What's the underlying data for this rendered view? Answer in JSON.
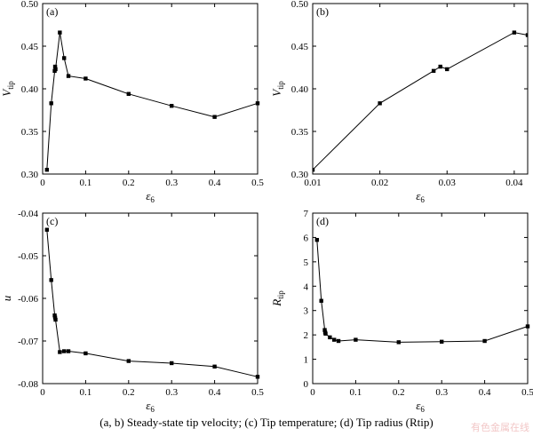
{
  "caption": "(a, b) Steady-state tip velocity; (c) Tip temperature; (d) Tip radius (Rtip)",
  "watermark": "有色金属在线",
  "colors": {
    "line": "#000000",
    "marker": "#000000",
    "axis": "#000000"
  },
  "chart_data": [
    {
      "type": "line",
      "panel": "(a)",
      "xlabel": "ε6",
      "ylabel": "Vtip",
      "xlim": [
        0,
        0.5
      ],
      "ylim": [
        0.3,
        0.5
      ],
      "xticks": [
        "0",
        "0.1",
        "0.2",
        "0.3",
        "0.4",
        "0.5"
      ],
      "yticks": [
        "0.30",
        "0.35",
        "0.40",
        "0.45",
        "0.50"
      ],
      "x": [
        0.01,
        0.02,
        0.028,
        0.029,
        0.03,
        0.04,
        0.05,
        0.06,
        0.1,
        0.2,
        0.3,
        0.4,
        0.5
      ],
      "y": [
        0.305,
        0.383,
        0.421,
        0.426,
        0.423,
        0.466,
        0.436,
        0.415,
        0.412,
        0.394,
        0.38,
        0.367,
        0.383
      ]
    },
    {
      "type": "line",
      "panel": "(b)",
      "xlabel": "ε6",
      "ylabel": "Vtip",
      "xlim": [
        0.01,
        0.042
      ],
      "ylim": [
        0.3,
        0.5
      ],
      "xticks": [
        "0.01",
        "0.02",
        "0.03",
        "0.04"
      ],
      "yticks": [
        "0.30",
        "0.35",
        "0.40",
        "0.45",
        "0.50"
      ],
      "x": [
        0.01,
        0.02,
        0.028,
        0.029,
        0.03,
        0.04,
        0.042
      ],
      "y": [
        0.305,
        0.383,
        0.421,
        0.426,
        0.423,
        0.466,
        0.463
      ]
    },
    {
      "type": "line",
      "panel": "(c)",
      "xlabel": "ε6",
      "ylabel": "u",
      "xlim": [
        0,
        0.5
      ],
      "ylim": [
        -0.08,
        -0.04
      ],
      "xticks": [
        "0",
        "0.1",
        "0.2",
        "0.3",
        "0.4",
        "0.5"
      ],
      "yticks": [
        "-0.08",
        "-0.07",
        "-0.06",
        "-0.05",
        "-0.04"
      ],
      "x": [
        0.01,
        0.02,
        0.028,
        0.029,
        0.03,
        0.04,
        0.05,
        0.06,
        0.1,
        0.2,
        0.3,
        0.4,
        0.5
      ],
      "y": [
        -0.0439,
        -0.0557,
        -0.064,
        -0.0645,
        -0.065,
        -0.0726,
        -0.0724,
        -0.0724,
        -0.0729,
        -0.0747,
        -0.0752,
        -0.076,
        -0.0784
      ]
    },
    {
      "type": "line",
      "panel": "(d)",
      "xlabel": "ε6",
      "ylabel": "Rtip",
      "xlim": [
        0,
        0.5
      ],
      "ylim": [
        0,
        7
      ],
      "xticks": [
        "0",
        "0.1",
        "0.2",
        "0.3",
        "0.4",
        "0.5"
      ],
      "yticks": [
        "0",
        "1",
        "2",
        "3",
        "4",
        "5",
        "6",
        "7"
      ],
      "x": [
        0.01,
        0.02,
        0.028,
        0.029,
        0.03,
        0.04,
        0.05,
        0.06,
        0.1,
        0.2,
        0.3,
        0.4,
        0.5
      ],
      "y": [
        5.9,
        3.4,
        2.2,
        2.1,
        2.05,
        1.9,
        1.8,
        1.75,
        1.8,
        1.7,
        1.72,
        1.75,
        2.35
      ]
    }
  ]
}
